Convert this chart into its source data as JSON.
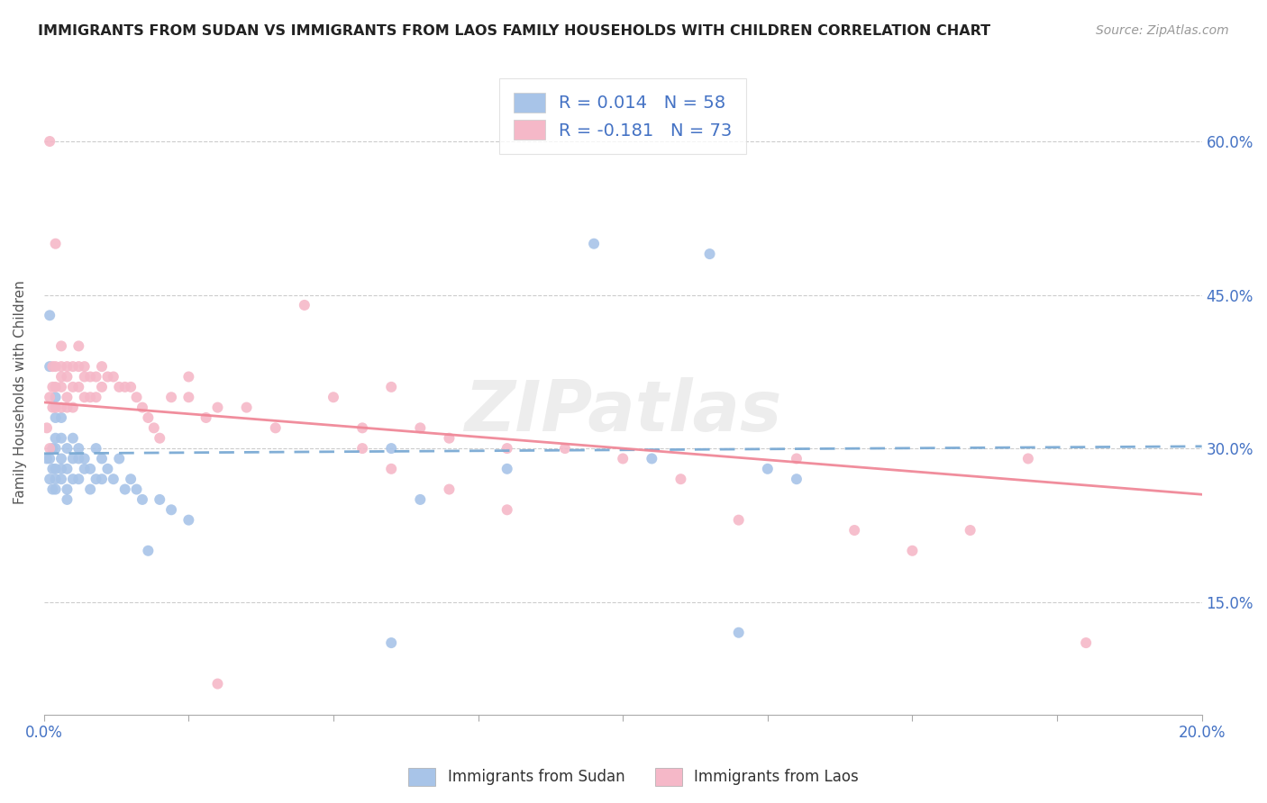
{
  "title": "IMMIGRANTS FROM SUDAN VS IMMIGRANTS FROM LAOS FAMILY HOUSEHOLDS WITH CHILDREN CORRELATION CHART",
  "source": "Source: ZipAtlas.com",
  "ylabel": "Family Households with Children",
  "ytick_labels": [
    "15.0%",
    "30.0%",
    "45.0%",
    "60.0%"
  ],
  "ytick_values": [
    0.15,
    0.3,
    0.45,
    0.6
  ],
  "xlim": [
    0.0,
    0.2
  ],
  "ylim": [
    0.04,
    0.67
  ],
  "sudan_color": "#a8c4e8",
  "laos_color": "#f5b8c8",
  "sudan_line_color": "#7aaad4",
  "laos_line_color": "#f08898",
  "watermark": "ZIPatlas",
  "sudan_x": [
    0.0005,
    0.001,
    0.001,
    0.001,
    0.001,
    0.0015,
    0.0015,
    0.0015,
    0.002,
    0.002,
    0.002,
    0.002,
    0.002,
    0.002,
    0.002,
    0.003,
    0.003,
    0.003,
    0.003,
    0.003,
    0.004,
    0.004,
    0.004,
    0.004,
    0.005,
    0.005,
    0.005,
    0.006,
    0.006,
    0.006,
    0.007,
    0.007,
    0.008,
    0.008,
    0.009,
    0.009,
    0.01,
    0.01,
    0.011,
    0.012,
    0.013,
    0.014,
    0.015,
    0.016,
    0.017,
    0.018,
    0.02,
    0.022,
    0.025,
    0.06,
    0.065,
    0.095,
    0.105,
    0.115,
    0.12,
    0.125,
    0.13,
    0.06,
    0.08
  ],
  "sudan_y": [
    0.29,
    0.43,
    0.38,
    0.29,
    0.27,
    0.3,
    0.28,
    0.26,
    0.35,
    0.33,
    0.31,
    0.3,
    0.28,
    0.27,
    0.26,
    0.33,
    0.31,
    0.29,
    0.28,
    0.27,
    0.3,
    0.28,
    0.26,
    0.25,
    0.31,
    0.29,
    0.27,
    0.3,
    0.29,
    0.27,
    0.29,
    0.28,
    0.28,
    0.26,
    0.3,
    0.27,
    0.29,
    0.27,
    0.28,
    0.27,
    0.29,
    0.26,
    0.27,
    0.26,
    0.25,
    0.2,
    0.25,
    0.24,
    0.23,
    0.3,
    0.25,
    0.5,
    0.29,
    0.49,
    0.12,
    0.28,
    0.27,
    0.11,
    0.28
  ],
  "laos_x": [
    0.0005,
    0.001,
    0.001,
    0.001,
    0.0015,
    0.0015,
    0.0015,
    0.002,
    0.002,
    0.002,
    0.002,
    0.003,
    0.003,
    0.003,
    0.003,
    0.003,
    0.004,
    0.004,
    0.004,
    0.004,
    0.005,
    0.005,
    0.005,
    0.006,
    0.006,
    0.006,
    0.007,
    0.007,
    0.007,
    0.008,
    0.008,
    0.009,
    0.009,
    0.01,
    0.01,
    0.011,
    0.012,
    0.013,
    0.014,
    0.015,
    0.016,
    0.017,
    0.018,
    0.019,
    0.02,
    0.022,
    0.025,
    0.028,
    0.03,
    0.035,
    0.04,
    0.045,
    0.05,
    0.055,
    0.06,
    0.065,
    0.07,
    0.08,
    0.09,
    0.1,
    0.11,
    0.12,
    0.13,
    0.14,
    0.15,
    0.16,
    0.17,
    0.18,
    0.03,
    0.025,
    0.055,
    0.06,
    0.07,
    0.08
  ],
  "laos_y": [
    0.32,
    0.6,
    0.35,
    0.3,
    0.38,
    0.36,
    0.34,
    0.5,
    0.38,
    0.36,
    0.34,
    0.4,
    0.38,
    0.37,
    0.36,
    0.34,
    0.38,
    0.37,
    0.35,
    0.34,
    0.38,
    0.36,
    0.34,
    0.4,
    0.38,
    0.36,
    0.38,
    0.37,
    0.35,
    0.37,
    0.35,
    0.37,
    0.35,
    0.38,
    0.36,
    0.37,
    0.37,
    0.36,
    0.36,
    0.36,
    0.35,
    0.34,
    0.33,
    0.32,
    0.31,
    0.35,
    0.35,
    0.33,
    0.34,
    0.34,
    0.32,
    0.44,
    0.35,
    0.32,
    0.36,
    0.32,
    0.31,
    0.3,
    0.3,
    0.29,
    0.27,
    0.23,
    0.29,
    0.22,
    0.2,
    0.22,
    0.29,
    0.11,
    0.07,
    0.37,
    0.3,
    0.28,
    0.26,
    0.24
  ]
}
